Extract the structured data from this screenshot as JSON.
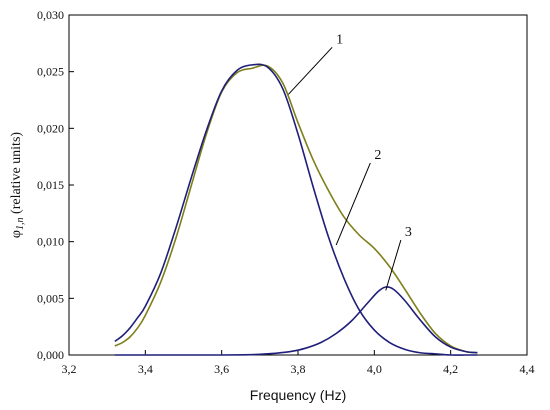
{
  "chart_data": {
    "type": "line",
    "xlabel": "Frequency (Hz)",
    "ylabel": {
      "symbol": "φ",
      "subscript": "1,n",
      "rest": " (relative units)"
    },
    "xlim": [
      3.2,
      4.4
    ],
    "ylim": [
      0,
      0.03
    ],
    "x_ticks": [
      3.2,
      3.4,
      3.6,
      3.8,
      4.0,
      4.2,
      4.4
    ],
    "x_tick_labels": [
      "3,2",
      "3,4",
      "3,6",
      "3,8",
      "4,0",
      "4,2",
      "4,4"
    ],
    "y_ticks": [
      0,
      0.005,
      0.01,
      0.015,
      0.02,
      0.025,
      0.03
    ],
    "y_tick_labels": [
      "0,000",
      "0,005",
      "0,010",
      "0,015",
      "0,020",
      "0,025",
      "0,030"
    ],
    "grid": false,
    "legend": "none",
    "series": [
      {
        "label": "1",
        "color": "#7f7f1a",
        "x": [
          3.32,
          3.34,
          3.36,
          3.38,
          3.4,
          3.44,
          3.48,
          3.52,
          3.56,
          3.6,
          3.64,
          3.68,
          3.72,
          3.76,
          3.8,
          3.84,
          3.88,
          3.92,
          3.96,
          4.0,
          4.04,
          4.08,
          4.12,
          4.16,
          4.2,
          4.24,
          4.27
        ],
        "y": [
          0.0008,
          0.0011,
          0.0016,
          0.0024,
          0.0035,
          0.0064,
          0.0103,
          0.0149,
          0.0195,
          0.0232,
          0.0249,
          0.0253,
          0.0255,
          0.024,
          0.0205,
          0.0172,
          0.0145,
          0.0122,
          0.0106,
          0.0094,
          0.0078,
          0.0058,
          0.0037,
          0.0019,
          0.0008,
          0.0003,
          0.0002
        ]
      },
      {
        "label": "2",
        "color": "#1f1f7a",
        "x": [
          3.32,
          3.34,
          3.36,
          3.38,
          3.4,
          3.44,
          3.48,
          3.52,
          3.56,
          3.6,
          3.64,
          3.68,
          3.72,
          3.76,
          3.8,
          3.84,
          3.88,
          3.92,
          3.96,
          4.0,
          4.04,
          4.08,
          4.12,
          4.16,
          4.2,
          4.24,
          4.27
        ],
        "y": [
          0.0012,
          0.0017,
          0.0024,
          0.0033,
          0.0043,
          0.0072,
          0.0112,
          0.0156,
          0.0198,
          0.0233,
          0.0251,
          0.0256,
          0.0254,
          0.0235,
          0.0195,
          0.0148,
          0.0104,
          0.0068,
          0.004,
          0.0022,
          0.0011,
          0.0005,
          0.0002,
          0.0001,
          0.0,
          0.0,
          0.0
        ]
      },
      {
        "label": "3",
        "color": "#1f1f7a",
        "x": [
          3.32,
          3.4,
          3.5,
          3.6,
          3.66,
          3.7,
          3.74,
          3.78,
          3.82,
          3.86,
          3.9,
          3.94,
          3.98,
          4.01,
          4.03,
          4.05,
          4.08,
          4.12,
          4.16,
          4.2,
          4.24,
          4.27
        ],
        "y": [
          0.0,
          0.0,
          0.0,
          0.0,
          2e-05,
          6e-05,
          0.00015,
          0.0003,
          0.0006,
          0.0011,
          0.0019,
          0.003,
          0.0045,
          0.0056,
          0.006,
          0.0058,
          0.0048,
          0.0031,
          0.0016,
          0.0007,
          0.0003,
          0.0002
        ]
      }
    ],
    "annotations": [
      {
        "text": "1",
        "point": [
          3.775,
          0.023
        ],
        "label_at": [
          3.9,
          0.0275
        ]
      },
      {
        "text": "2",
        "point": [
          3.9,
          0.0097
        ],
        "label_at": [
          4.0,
          0.0173
        ]
      },
      {
        "text": "3",
        "point": [
          4.03,
          0.0057
        ],
        "label_at": [
          4.08,
          0.0105
        ]
      }
    ]
  }
}
